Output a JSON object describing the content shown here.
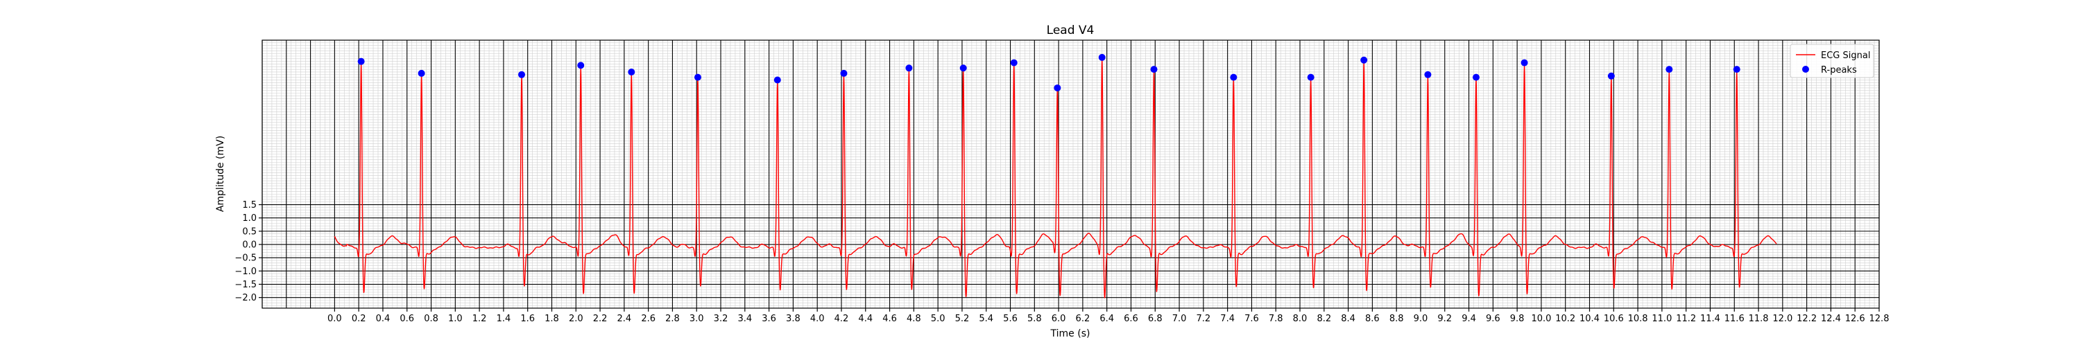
{
  "chart_data": {
    "type": "line",
    "title": "Lead V4",
    "xlabel": "Time (s)",
    "ylabel": "Amplitude (mV)",
    "xlim": [
      -0.6,
      12.8
    ],
    "ylim": [
      -2.4,
      7.7
    ],
    "x_ticks": [
      "0.0",
      "0.2",
      "0.4",
      "0.6",
      "0.8",
      "1.0",
      "1.2",
      "1.4",
      "1.6",
      "1.8",
      "2.0",
      "2.2",
      "2.4",
      "2.6",
      "2.8",
      "3.0",
      "3.2",
      "3.4",
      "3.6",
      "3.8",
      "4.0",
      "4.2",
      "4.4",
      "4.6",
      "4.8",
      "5.0",
      "5.2",
      "5.4",
      "5.6",
      "5.8",
      "6.0",
      "6.2",
      "6.4",
      "6.6",
      "6.8",
      "7.0",
      "7.2",
      "7.4",
      "7.6",
      "7.8",
      "8.0",
      "8.2",
      "8.4",
      "8.6",
      "8.8",
      "9.0",
      "9.2",
      "9.4",
      "9.6",
      "9.8",
      "10.0",
      "10.2",
      "10.4",
      "10.6",
      "10.8",
      "11.0",
      "11.2",
      "11.4",
      "11.6",
      "11.8",
      "12.0",
      "12.2",
      "12.4",
      "12.6",
      "12.8"
    ],
    "y_ticks": [
      "−2.0",
      "−1.5",
      "−1.0",
      "−0.5",
      "0.0",
      "0.5",
      "1.0",
      "1.5"
    ],
    "y_tick_values": [
      -2.0,
      -1.5,
      -1.0,
      -0.5,
      0.0,
      0.5,
      1.0,
      1.5
    ],
    "grid": "ECG paper: minor 0.04 s / 0.1 mV, major 0.2 s / 0.5 mV",
    "legend_position": "upper-right",
    "series": [
      {
        "name": "ECG Signal",
        "color": "#ff0000",
        "signal_end": 11.95,
        "baseline": -0.12,
        "s_depth": -2.0,
        "beats": [
          {
            "t": 0.22,
            "r": 6.9,
            "s": -1.95
          },
          {
            "t": 0.72,
            "r": 6.45,
            "s": -1.75
          },
          {
            "t": 1.55,
            "r": 6.4,
            "s": -1.7
          },
          {
            "t": 2.04,
            "r": 6.75,
            "s": -1.95
          },
          {
            "t": 2.46,
            "r": 6.5,
            "s": -1.95
          },
          {
            "t": 3.01,
            "r": 6.3,
            "s": -1.65
          },
          {
            "t": 3.67,
            "r": 6.2,
            "s": -1.8
          },
          {
            "t": 4.22,
            "r": 6.45,
            "s": -1.8
          },
          {
            "t": 4.76,
            "r": 6.65,
            "s": -1.8
          },
          {
            "t": 5.21,
            "r": 6.65,
            "s": -2.05
          },
          {
            "t": 5.63,
            "r": 6.85,
            "s": -1.95
          },
          {
            "t": 5.99,
            "r": 5.9,
            "s": -2.05
          },
          {
            "t": 6.36,
            "r": 7.05,
            "s": -2.15
          },
          {
            "t": 6.79,
            "r": 6.6,
            "s": -1.9
          },
          {
            "t": 7.45,
            "r": 6.3,
            "s": -1.7
          },
          {
            "t": 8.09,
            "r": 6.3,
            "s": -1.75
          },
          {
            "t": 8.53,
            "r": 6.95,
            "s": -1.85
          },
          {
            "t": 9.06,
            "r": 6.4,
            "s": -1.7
          },
          {
            "t": 9.46,
            "r": 6.3,
            "s": -2.05
          },
          {
            "t": 9.86,
            "r": 6.85,
            "s": -2.0
          },
          {
            "t": 10.58,
            "r": 6.35,
            "s": -1.75
          },
          {
            "t": 11.06,
            "r": 6.6,
            "s": -1.8
          },
          {
            "t": 11.62,
            "r": 6.6,
            "s": -1.75
          }
        ]
      },
      {
        "name": "R-peaks",
        "color": "#0000ff",
        "x": [
          0.22,
          0.72,
          1.55,
          2.04,
          2.46,
          3.01,
          3.67,
          4.22,
          4.76,
          5.21,
          5.63,
          5.99,
          6.36,
          6.79,
          7.45,
          8.09,
          8.53,
          9.06,
          9.46,
          9.86,
          10.58,
          11.06,
          11.62
        ],
        "y": [
          6.9,
          6.45,
          6.4,
          6.75,
          6.5,
          6.3,
          6.2,
          6.45,
          6.65,
          6.65,
          6.85,
          5.9,
          7.05,
          6.6,
          6.3,
          6.3,
          6.95,
          6.4,
          6.3,
          6.85,
          6.35,
          6.6,
          6.6
        ]
      }
    ]
  }
}
